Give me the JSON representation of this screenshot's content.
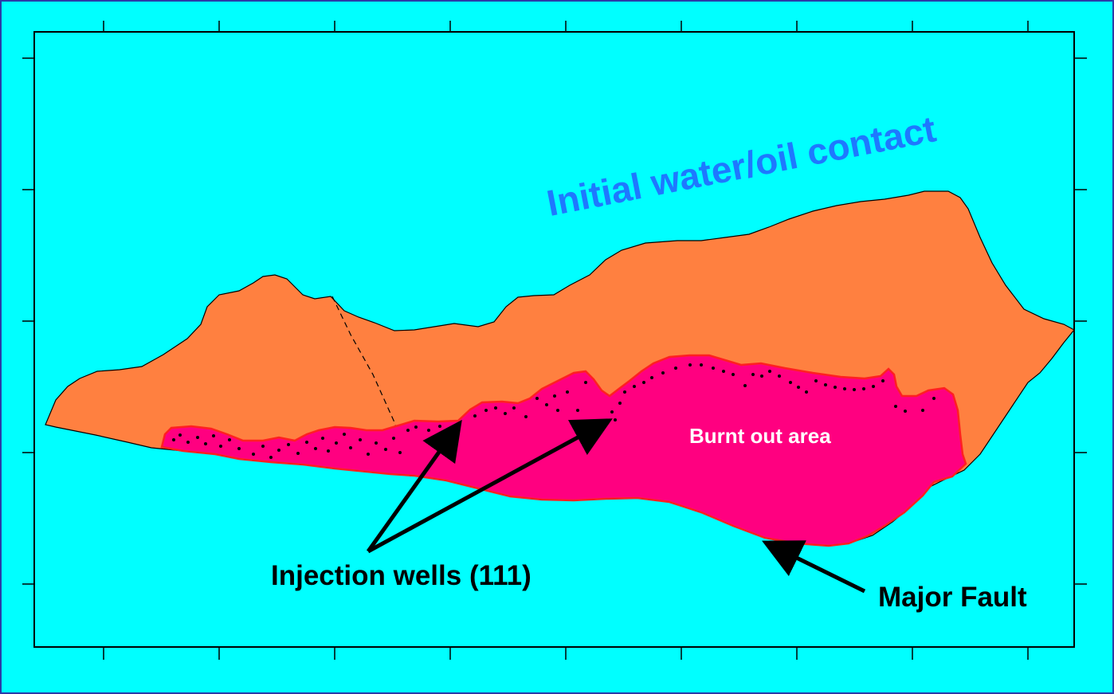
{
  "map": {
    "labels": {
      "water_oil_contact": "Initial water/oil contact",
      "burnt_area": "Burnt out area",
      "injection_wells": "Injection wells (111)",
      "major_fault": "Major Fault"
    },
    "colors": {
      "background": "#00FFFF",
      "oil_zone": "#FF8040",
      "burnt_zone": "#FF0080",
      "burnt_outline": "#FF2020",
      "contact_text": "#1E78FF",
      "frame": "#2B3AA8",
      "wells": "#000000"
    },
    "icons": [
      "arrow-icon"
    ]
  }
}
